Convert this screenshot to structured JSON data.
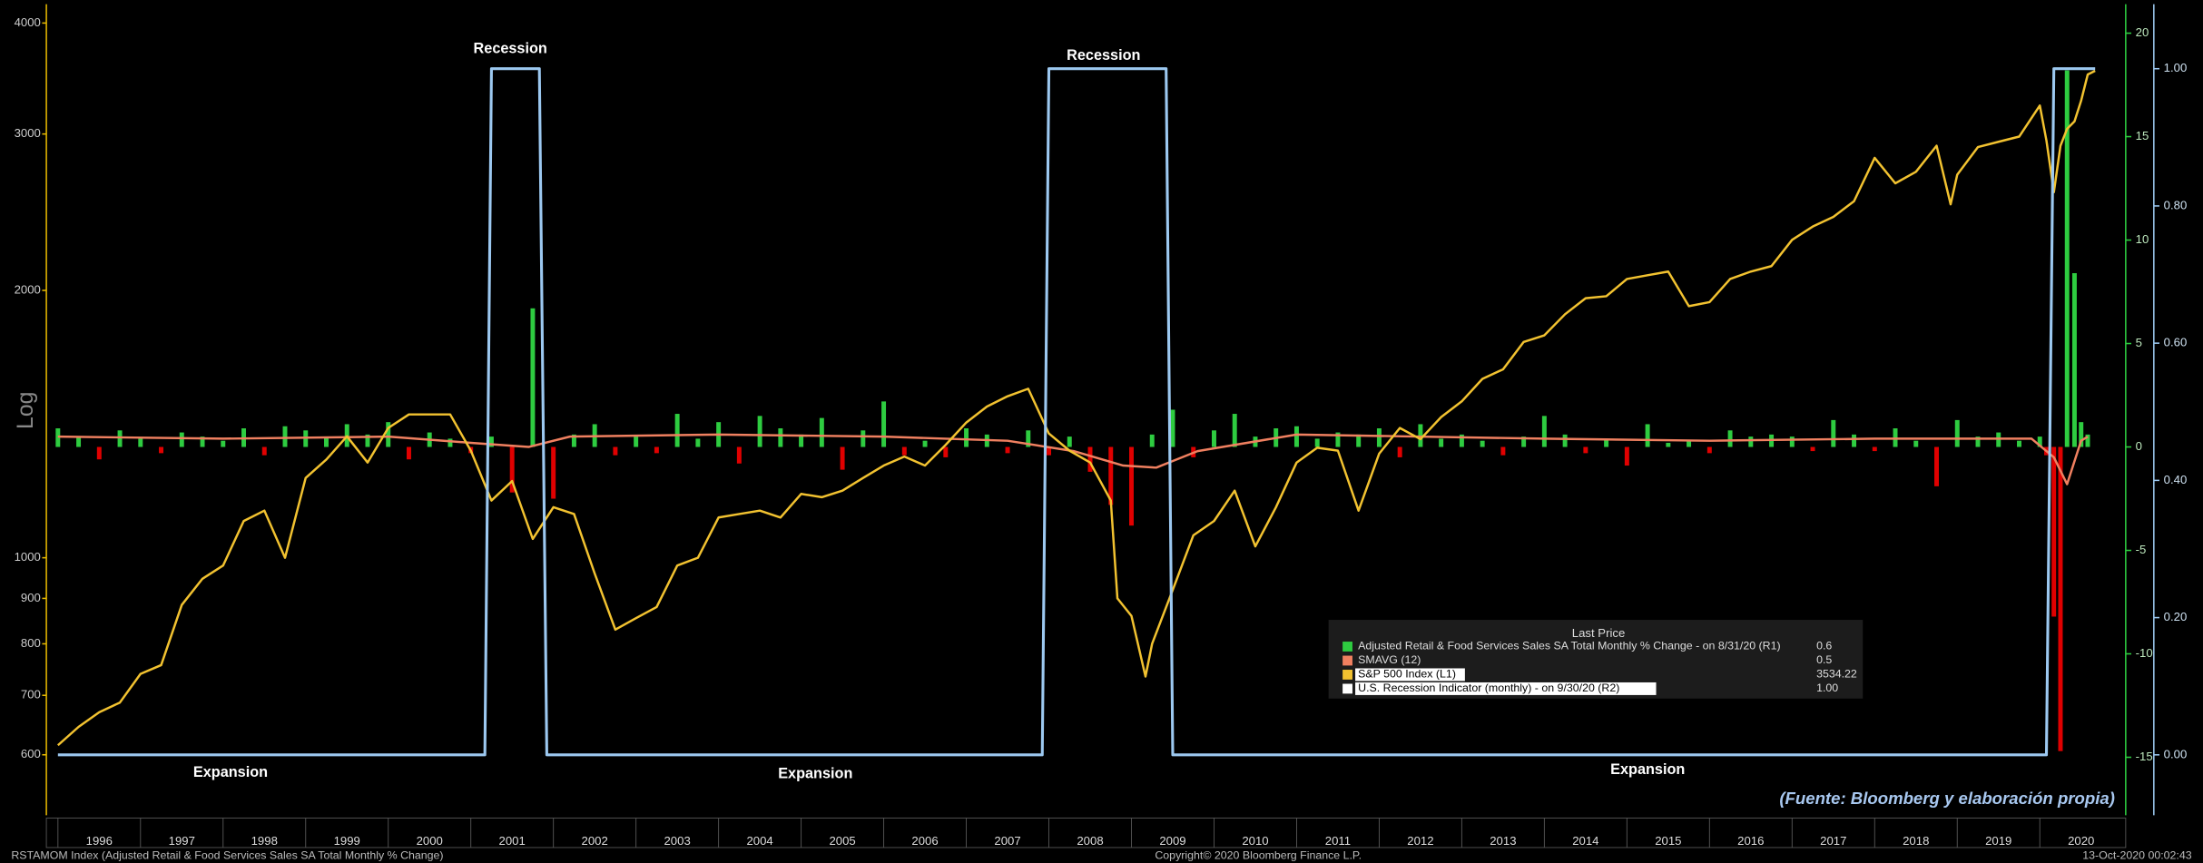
{
  "chart_data": {
    "type": "combo",
    "axis_label": "Log",
    "xlim": [
      1995.86,
      2021.04
    ],
    "xticks": [
      1996,
      1997,
      1998,
      1999,
      2000,
      2001,
      2002,
      2003,
      2004,
      2005,
      2006,
      2007,
      2008,
      2009,
      2010,
      2011,
      2012,
      2013,
      2014,
      2015,
      2016,
      2017,
      2018,
      2019,
      2020
    ],
    "ylim": [
      513,
      4200
    ],
    "yticks": [
      600,
      700,
      800,
      900,
      1000,
      2000,
      3000,
      4000
    ],
    "log_scale": true,
    "y2lim": [
      -17.8,
      21.4
    ],
    "y2ticks": [
      20,
      15,
      10,
      5,
      0,
      -5,
      -10,
      -15
    ],
    "y3lim": [
      -0.088,
      1.094
    ],
    "y3ticks": [
      {
        "value": 1,
        "label": "1.00"
      },
      {
        "value": 0.8,
        "label": "0.80"
      },
      {
        "value": 0.6,
        "label": "0.60"
      },
      {
        "value": 0.4,
        "label": "0.40"
      },
      {
        "value": 0.2,
        "label": "0.20"
      },
      {
        "value": 0,
        "label": "0.00"
      }
    ],
    "legend_title": "Last Price",
    "series": [
      {
        "name": "Adjusted Retail & Food Services Sales SA Total Monthly % Change -  on 8/31/20  (R1)",
        "last_price": "0.6",
        "type": "bar",
        "axis": "y2",
        "color": "#2ecc40",
        "negative_color": "#e00000",
        "x": [
          1996,
          1996.25,
          1996.5,
          1996.75,
          1997,
          1997.25,
          1997.5,
          1997.75,
          1998,
          1998.25,
          1998.5,
          1998.75,
          1999,
          1999.25,
          1999.5,
          1999.75,
          2000,
          2000.25,
          2000.5,
          2000.75,
          2001,
          2001.25,
          2001.5,
          2001.75,
          2002,
          2002.25,
          2002.5,
          2002.75,
          2003,
          2003.25,
          2003.5,
          2003.75,
          2004,
          2004.25,
          2004.5,
          2004.75,
          2005,
          2005.25,
          2005.5,
          2005.75,
          2006,
          2006.25,
          2006.5,
          2006.75,
          2007,
          2007.25,
          2007.5,
          2007.75,
          2008,
          2008.25,
          2008.5,
          2008.75,
          2009,
          2009.25,
          2009.5,
          2009.75,
          2010,
          2010.25,
          2010.5,
          2010.75,
          2011,
          2011.25,
          2011.5,
          2011.75,
          2012,
          2012.25,
          2012.5,
          2012.75,
          2013,
          2013.25,
          2013.5,
          2013.75,
          2014,
          2014.25,
          2014.5,
          2014.75,
          2015,
          2015.25,
          2015.5,
          2015.75,
          2016,
          2016.25,
          2016.5,
          2016.75,
          2017,
          2017.25,
          2017.5,
          2017.75,
          2018,
          2018.25,
          2018.5,
          2018.75,
          2019,
          2019.25,
          2019.5,
          2019.75,
          2020,
          2020.08,
          2020.17,
          2020.25,
          2020.33,
          2020.42,
          2020.5,
          2020.58
        ],
        "values": [
          0.9,
          0.5,
          -0.6,
          0.8,
          0.4,
          -0.3,
          0.7,
          0.5,
          0.3,
          0.9,
          -0.4,
          1.0,
          0.8,
          0.5,
          1.1,
          0.6,
          1.2,
          -0.6,
          0.7,
          0.4,
          -0.3,
          0.5,
          -2.2,
          6.7,
          -2.5,
          0.6,
          1.1,
          -0.4,
          0.5,
          -0.3,
          1.6,
          0.4,
          1.2,
          -0.8,
          1.5,
          0.9,
          0.6,
          1.4,
          -1.1,
          0.8,
          2.2,
          -0.4,
          0.3,
          -0.5,
          0.9,
          0.6,
          -0.3,
          0.8,
          -0.4,
          0.5,
          -1.2,
          -2.8,
          -3.8,
          0.6,
          1.8,
          -0.5,
          0.8,
          1.6,
          0.5,
          0.9,
          1.0,
          0.4,
          0.7,
          0.6,
          0.9,
          -0.5,
          1.1,
          0.4,
          0.6,
          0.3,
          -0.4,
          0.5,
          1.5,
          0.6,
          -0.3,
          0.4,
          -0.9,
          1.1,
          0.2,
          0.3,
          -0.3,
          0.8,
          0.5,
          0.6,
          0.5,
          -0.2,
          1.3,
          0.6,
          -0.2,
          0.9,
          0.3,
          -1.9,
          1.3,
          0.5,
          0.7,
          0.3,
          0.5,
          -0.4,
          -8.2,
          -14.7,
          18.2,
          8.4,
          1.2,
          0.6
        ]
      },
      {
        "name": "SMAVG (12)",
        "last_price": "0.5",
        "type": "line",
        "axis": "y2",
        "color": "#f08060",
        "x": [
          1996,
          1998,
          2000,
          2001,
          2001.7,
          2002.2,
          2004,
          2006,
          2007.5,
          2008.3,
          2008.9,
          2009.3,
          2009.8,
          2011,
          2014,
          2016,
          2018,
          2019.9,
          2020.17,
          2020.33,
          2020.5,
          2020.58
        ],
        "values": [
          0.5,
          0.4,
          0.5,
          0.2,
          0.0,
          0.5,
          0.6,
          0.5,
          0.3,
          -0.2,
          -0.9,
          -1.0,
          -0.2,
          0.6,
          0.4,
          0.3,
          0.4,
          0.4,
          -0.5,
          -1.8,
          0.3,
          0.5
        ]
      },
      {
        "name": "S&P 500 Index  (L1)",
        "last_price": "3534.22",
        "type": "line",
        "color": "#f2c230",
        "x": [
          1996,
          1996.25,
          1996.5,
          1996.75,
          1997,
          1997.25,
          1997.5,
          1997.75,
          1998,
          1998.25,
          1998.5,
          1998.75,
          1999,
          1999.25,
          1999.5,
          1999.75,
          2000,
          2000.25,
          2000.5,
          2000.75,
          2001,
          2001.25,
          2001.5,
          2001.75,
          2002,
          2002.25,
          2002.5,
          2002.75,
          2003,
          2003.25,
          2003.5,
          2003.75,
          2004,
          2004.25,
          2004.5,
          2004.75,
          2005,
          2005.25,
          2005.5,
          2005.75,
          2006,
          2006.25,
          2006.5,
          2006.75,
          2007,
          2007.25,
          2007.5,
          2007.75,
          2008,
          2008.25,
          2008.5,
          2008.75,
          2008.83,
          2009,
          2009.17,
          2009.25,
          2009.5,
          2009.75,
          2010,
          2010.25,
          2010.5,
          2010.75,
          2011,
          2011.25,
          2011.5,
          2011.75,
          2012,
          2012.25,
          2012.5,
          2012.75,
          2013,
          2013.25,
          2013.5,
          2013.75,
          2014,
          2014.25,
          2014.5,
          2014.75,
          2015,
          2015.25,
          2015.5,
          2015.75,
          2016,
          2016.25,
          2016.5,
          2016.75,
          2017,
          2017.25,
          2017.5,
          2017.75,
          2018,
          2018.25,
          2018.5,
          2018.75,
          2018.92,
          2019,
          2019.25,
          2019.5,
          2019.75,
          2020,
          2020.08,
          2020.17,
          2020.25,
          2020.33,
          2020.42,
          2020.5,
          2020.58,
          2020.67
        ],
        "values": [
          615,
          645,
          670,
          687,
          740,
          757,
          885,
          947,
          980,
          1100,
          1130,
          1000,
          1230,
          1290,
          1370,
          1280,
          1400,
          1450,
          1450,
          1450,
          1320,
          1160,
          1220,
          1050,
          1140,
          1120,
          960,
          830,
          855,
          880,
          980,
          1000,
          1110,
          1120,
          1130,
          1110,
          1180,
          1170,
          1190,
          1230,
          1270,
          1300,
          1270,
          1340,
          1420,
          1480,
          1520,
          1550,
          1380,
          1320,
          1280,
          1160,
          900,
          860,
          735,
          800,
          920,
          1060,
          1100,
          1190,
          1030,
          1140,
          1280,
          1330,
          1320,
          1130,
          1310,
          1400,
          1360,
          1440,
          1500,
          1590,
          1630,
          1750,
          1780,
          1880,
          1960,
          1970,
          2060,
          2080,
          2100,
          1920,
          1940,
          2060,
          2100,
          2130,
          2280,
          2360,
          2420,
          2520,
          2820,
          2640,
          2720,
          2910,
          2500,
          2700,
          2900,
          2940,
          2980,
          3230,
          2950,
          2580,
          2910,
          3040,
          3100,
          3270,
          3500,
          3534.22
        ]
      },
      {
        "name": "U.S. Recession Indicator (monthly) -  on 9/30/20  (R2)",
        "last_price": "1.00",
        "type": "line",
        "axis": "y3",
        "color": "#9cc8f0",
        "x": [
          1996,
          2001.17,
          2001.25,
          2001.83,
          2001.92,
          2007.92,
          2008.0,
          2009.42,
          2009.5,
          2020.08,
          2020.17,
          2020.67
        ],
        "values": [
          0,
          0,
          1,
          1,
          0,
          0,
          1,
          1,
          0,
          0,
          1,
          1
        ]
      }
    ],
    "annotations": [
      "Recession",
      "Recession",
      "Expansion",
      "Expansion",
      "Expansion"
    ],
    "source": "(Fuente: Bloomberg y elaboración propia)",
    "footer_left": "RSTAMOM Index (Adjusted Retail & Food Services Sales SA Total Monthly % Change)",
    "footer_center": "Copyright© 2020 Bloomberg Finance L.P.",
    "footer_right": "13-Oct-2020 00:02:43"
  }
}
